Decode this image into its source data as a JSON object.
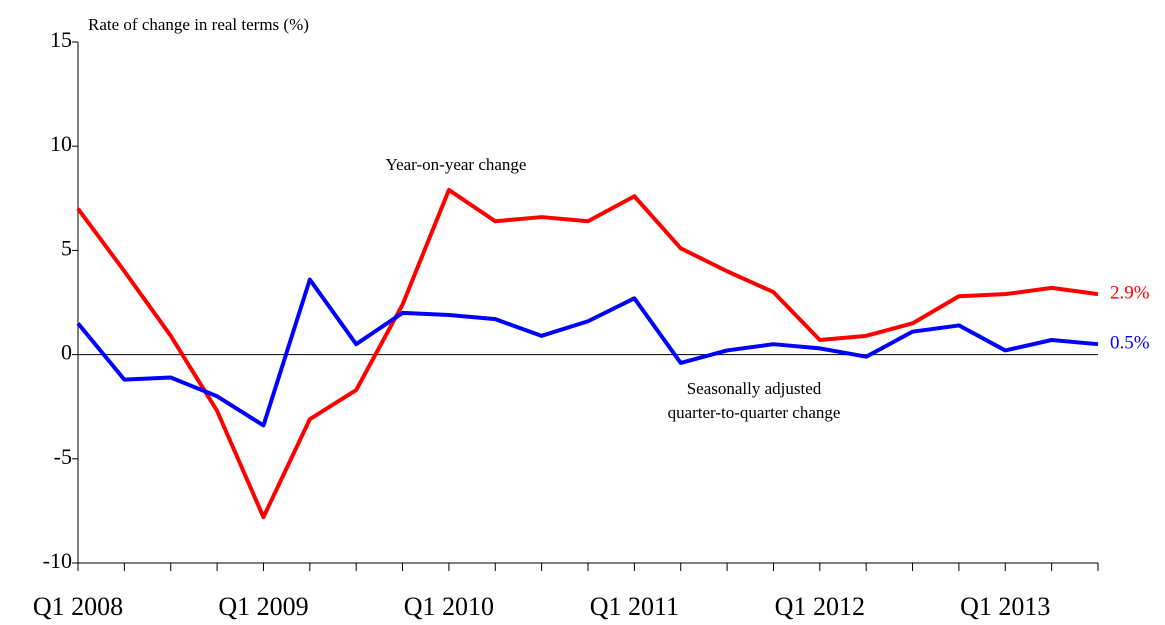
{
  "chart_data": {
    "type": "line",
    "ylabel": "Rate of change in real terms (%)",
    "categories": [
      "Q1 2008",
      null,
      null,
      null,
      "Q1 2009",
      null,
      null,
      null,
      "Q1 2010",
      null,
      null,
      null,
      "Q1 2011",
      null,
      null,
      null,
      "Q1 2012",
      null,
      null,
      null,
      "Q1 2013",
      null,
      null
    ],
    "series": [
      {
        "name": "Year-on-year change",
        "color": "#ff0000",
        "values": [
          7.0,
          4.0,
          0.9,
          -2.7,
          -7.8,
          -3.1,
          -1.7,
          2.4,
          7.9,
          6.4,
          6.6,
          6.4,
          7.6,
          5.1,
          4.0,
          3.0,
          0.7,
          0.9,
          1.5,
          2.8,
          2.9,
          3.2,
          2.9
        ],
        "value_labels": [
          null,
          null,
          null,
          null,
          null,
          null,
          null,
          null,
          null,
          null,
          null,
          null,
          null,
          null,
          null,
          null,
          null,
          null,
          null,
          null,
          null,
          null,
          "2.9%"
        ]
      },
      {
        "name": "Seasonally adjusted quarter-to-quarter change",
        "name_lines": [
          "Seasonally adjusted",
          "quarter-to-quarter change"
        ],
        "color": "#0000ff",
        "values": [
          1.5,
          -1.2,
          -1.1,
          -2.0,
          -3.4,
          3.6,
          0.5,
          2.0,
          1.9,
          1.7,
          0.9,
          1.6,
          2.7,
          -0.4,
          0.2,
          0.5,
          0.3,
          -0.1,
          1.1,
          1.4,
          0.2,
          0.7,
          0.5
        ],
        "value_labels": [
          null,
          null,
          null,
          null,
          null,
          null,
          null,
          null,
          null,
          null,
          null,
          null,
          null,
          null,
          null,
          null,
          null,
          null,
          null,
          null,
          null,
          null,
          "0.5%"
        ]
      }
    ],
    "ylim": [
      -10,
      15
    ],
    "yticks": [
      -10,
      -5,
      0,
      5,
      10,
      15
    ],
    "grid": false
  }
}
